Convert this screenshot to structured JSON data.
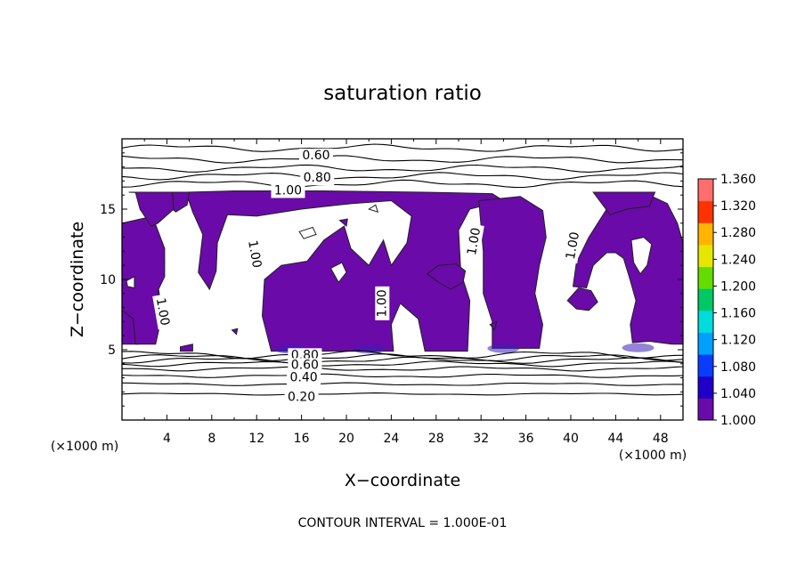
{
  "chart_data": {
    "type": "heatmap",
    "title": "saturation ratio",
    "xlabel": "X−coordinate",
    "ylabel": "Z−coordinate",
    "x_unit_label": "(×1000 m)",
    "y_unit_label": "(×1000 m)",
    "footer": "CONTOUR INTERVAL = 1.000E-01",
    "xlim": [
      0,
      50
    ],
    "ylim": [
      0,
      20
    ],
    "x_ticks": [
      4,
      8,
      12,
      16,
      20,
      24,
      28,
      32,
      36,
      40,
      44,
      48
    ],
    "y_ticks": [
      5,
      10,
      15
    ],
    "x_tick_labels": [
      "4",
      "8",
      "12",
      "16",
      "20",
      "24",
      "28",
      "32",
      "36",
      "40",
      "44",
      "48"
    ],
    "y_tick_labels": [
      "5",
      "10",
      "15"
    ],
    "colorbar": {
      "range": [
        1.0,
        1.36
      ],
      "labels": [
        "1.360",
        "1.320",
        "1.280",
        "1.240",
        "1.200",
        "1.160",
        "1.120",
        "1.080",
        "1.040",
        "1.000"
      ],
      "colors": [
        "#6a0aa8",
        "#1e00c8",
        "#0a3cff",
        "#00a0ff",
        "#00dcdc",
        "#00c864",
        "#64dc00",
        "#e6e600",
        "#ffb400",
        "#ff3200",
        "#ff6e6e"
      ]
    },
    "fill_color": "#6a0aa8",
    "contour_labels": [
      {
        "text": "0.60",
        "x": 17.3,
        "y": 18.8
      },
      {
        "text": "0.80",
        "x": 17.4,
        "y": 17.2
      },
      {
        "text": "1.00",
        "x": 14.8,
        "y": 16.3
      },
      {
        "text": "1.00",
        "x": 31.4,
        "y": 12.7,
        "rotate": -80
      },
      {
        "text": "1.00",
        "x": 40.2,
        "y": 12.4,
        "rotate": -80
      },
      {
        "text": "1.00",
        "x": 11.8,
        "y": 11.8,
        "rotate": 80
      },
      {
        "text": "1.00",
        "x": 3.6,
        "y": 7.7,
        "rotate": 80
      },
      {
        "text": "1.00",
        "x": 23.2,
        "y": 8.3,
        "rotate": -90
      },
      {
        "text": "0.80",
        "x": 16.3,
        "y": 4.6
      },
      {
        "text": "0.60",
        "x": 16.3,
        "y": 3.9
      },
      {
        "text": "0.40",
        "x": 16.2,
        "y": 3.0
      },
      {
        "text": "0.20",
        "x": 16.0,
        "y": 1.6
      }
    ],
    "contour_levels_lower": [
      0.2,
      0.3,
      0.4,
      0.5,
      0.6,
      0.7,
      0.8,
      0.9
    ],
    "lower_contour_heights": [
      1.85,
      2.55,
      3.15,
      3.65,
      4.0,
      4.25,
      4.45,
      4.65
    ],
    "upper_contour_heights": [
      19.35,
      18.55,
      17.9,
      17.35,
      16.8
    ]
  }
}
